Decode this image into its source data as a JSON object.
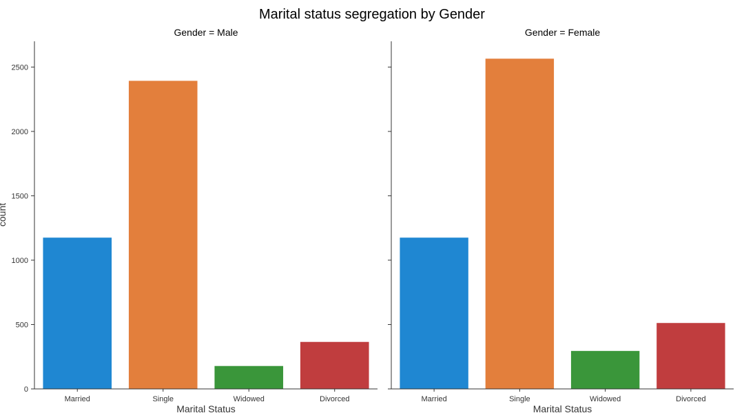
{
  "chart_data": {
    "type": "bar",
    "title": "Marital status segregation by Gender",
    "ylabel": "count",
    "ylim": [
      0,
      2700
    ],
    "yticks": [
      0,
      500,
      1000,
      1500,
      2000,
      2500
    ],
    "grid": false,
    "colors": [
      "#1f87d2",
      "#e37f3c",
      "#3a963a",
      "#c03d3e"
    ],
    "panels": [
      {
        "title": "Gender = Male",
        "xlabel": "Marital Status",
        "categories": [
          "Married",
          "Single",
          "Widowed",
          "Divorced"
        ],
        "values": [
          1175,
          2393,
          178,
          365
        ]
      },
      {
        "title": "Gender = Female",
        "xlabel": "Marital Status",
        "categories": [
          "Married",
          "Single",
          "Widowed",
          "Divorced"
        ],
        "values": [
          1175,
          2565,
          295,
          512
        ]
      }
    ]
  }
}
